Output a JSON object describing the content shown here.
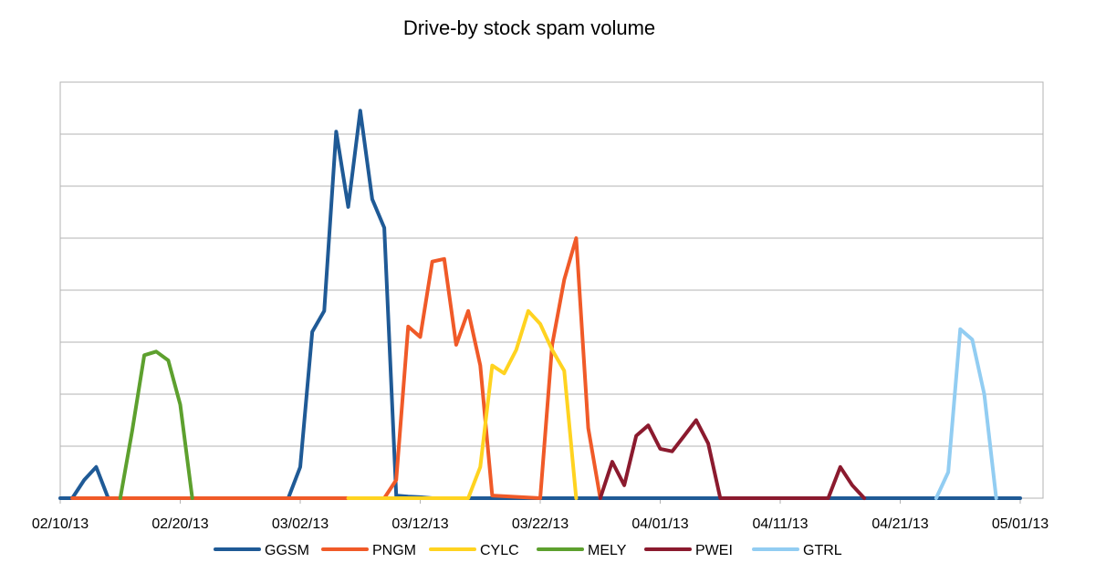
{
  "chart_data": {
    "type": "line",
    "title": "Drive-by stock spam volume",
    "xlabel": "",
    "ylabel": "",
    "x_tick_labels": [
      "02/10/13",
      "02/20/13",
      "03/02/13",
      "03/12/13",
      "03/22/13",
      "04/01/13",
      "04/11/13",
      "04/21/13",
      "05/01/13"
    ],
    "x_tick_dates": [
      "2013-02-10",
      "2013-02-20",
      "2013-03-02",
      "2013-03-12",
      "2013-03-22",
      "2013-04-01",
      "2013-04-11",
      "2013-04-21",
      "2013-05-01"
    ],
    "x_range": [
      "2013-02-10",
      "2013-05-01"
    ],
    "ylim": [
      0,
      8
    ],
    "y_tick_labels_visible": false,
    "grid": "horizontal",
    "legend_position": "bottom",
    "series": [
      {
        "name": "GGSM",
        "color": "#1f5a96",
        "points": [
          [
            "2013-02-10",
            0
          ],
          [
            "2013-02-11",
            0
          ],
          [
            "2013-02-12",
            0.35
          ],
          [
            "2013-02-13",
            0.6
          ],
          [
            "2013-02-14",
            0
          ],
          [
            "2013-02-15",
            0
          ],
          [
            "2013-03-01",
            0
          ],
          [
            "2013-03-02",
            0.6
          ],
          [
            "2013-03-03",
            3.2
          ],
          [
            "2013-03-04",
            3.6
          ],
          [
            "2013-03-05",
            7.05
          ],
          [
            "2013-03-06",
            5.6
          ],
          [
            "2013-03-07",
            7.45
          ],
          [
            "2013-03-08",
            5.75
          ],
          [
            "2013-03-09",
            5.2
          ],
          [
            "2013-03-10",
            0.05
          ],
          [
            "2013-03-11",
            0.03
          ],
          [
            "2013-03-12",
            0.02
          ],
          [
            "2013-03-13",
            0
          ],
          [
            "2013-05-01",
            0
          ]
        ]
      },
      {
        "name": "PNGM",
        "color": "#f05a28",
        "points": [
          [
            "2013-02-11",
            0
          ],
          [
            "2013-03-09",
            0
          ],
          [
            "2013-03-10",
            0.35
          ],
          [
            "2013-03-11",
            3.3
          ],
          [
            "2013-03-12",
            3.1
          ],
          [
            "2013-03-13",
            4.55
          ],
          [
            "2013-03-14",
            4.6
          ],
          [
            "2013-03-15",
            2.95
          ],
          [
            "2013-03-16",
            3.6
          ],
          [
            "2013-03-17",
            2.55
          ],
          [
            "2013-03-18",
            0.05
          ],
          [
            "2013-03-22",
            0
          ],
          [
            "2013-03-23",
            2.95
          ],
          [
            "2013-03-24",
            4.2
          ],
          [
            "2013-03-25",
            5
          ],
          [
            "2013-03-26",
            1.35
          ],
          [
            "2013-03-27",
            0
          ]
        ]
      },
      {
        "name": "CYLC",
        "color": "#ffd320",
        "points": [
          [
            "2013-03-06",
            0
          ],
          [
            "2013-03-16",
            0
          ],
          [
            "2013-03-17",
            0.6
          ],
          [
            "2013-03-18",
            2.55
          ],
          [
            "2013-03-19",
            2.4
          ],
          [
            "2013-03-20",
            2.85
          ],
          [
            "2013-03-21",
            3.6
          ],
          [
            "2013-03-22",
            3.35
          ],
          [
            "2013-03-23",
            2.85
          ],
          [
            "2013-03-24",
            2.45
          ],
          [
            "2013-03-25",
            0
          ]
        ]
      },
      {
        "name": "MELY",
        "color": "#5da02e",
        "points": [
          [
            "2013-02-15",
            0
          ],
          [
            "2013-02-16",
            1.3
          ],
          [
            "2013-02-17",
            2.75
          ],
          [
            "2013-02-18",
            2.82
          ],
          [
            "2013-02-19",
            2.65
          ],
          [
            "2013-02-20",
            1.8
          ],
          [
            "2013-02-21",
            0
          ]
        ]
      },
      {
        "name": "PWEI",
        "color": "#8b1a2e",
        "points": [
          [
            "2013-03-27",
            0
          ],
          [
            "2013-03-28",
            0.7
          ],
          [
            "2013-03-29",
            0.25
          ],
          [
            "2013-03-30",
            1.2
          ],
          [
            "2013-03-31",
            1.4
          ],
          [
            "2013-04-01",
            0.95
          ],
          [
            "2013-04-02",
            0.9
          ],
          [
            "2013-04-03",
            1.2
          ],
          [
            "2013-04-04",
            1.5
          ],
          [
            "2013-04-05",
            1.05
          ],
          [
            "2013-04-06",
            0
          ],
          [
            "2013-04-15",
            0
          ],
          [
            "2013-04-16",
            0.6
          ],
          [
            "2013-04-17",
            0.25
          ],
          [
            "2013-04-18",
            0
          ]
        ]
      },
      {
        "name": "GTRL",
        "color": "#92cdf2",
        "points": [
          [
            "2013-04-24",
            0
          ],
          [
            "2013-04-25",
            0.5
          ],
          [
            "2013-04-26",
            3.25
          ],
          [
            "2013-04-27",
            3.05
          ],
          [
            "2013-04-28",
            2
          ],
          [
            "2013-04-29",
            0
          ]
        ]
      }
    ]
  }
}
